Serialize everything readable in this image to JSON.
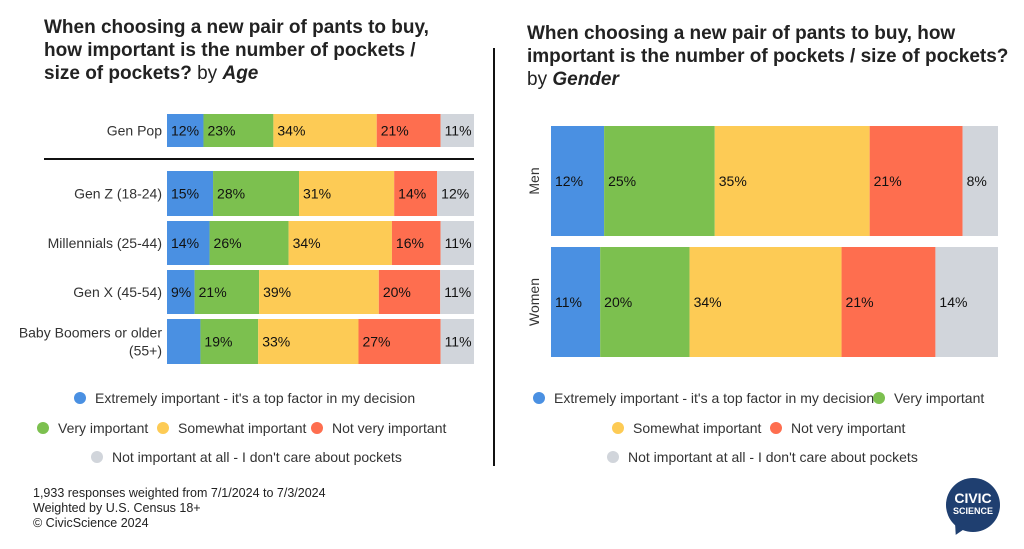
{
  "colors": {
    "extremely": "#4a90e2",
    "very": "#7cc04f",
    "somewhat": "#fdcb55",
    "not_very": "#fe6e4f",
    "not_at_all": "#d1d5db"
  },
  "left": {
    "title_lines": [
      "When choosing a new pair of pants to buy,",
      "how important is the number of pockets /",
      "size of pockets?"
    ],
    "by_text": "by",
    "by_dim": "Age",
    "legend": [
      "Extremely important - it's a top factor in my decision",
      "Very important",
      "Somewhat important",
      "Not very important",
      "Not important at all - I don't care about pockets"
    ]
  },
  "right": {
    "title_lines": [
      "When choosing a new pair of pants to buy, how",
      "important is the number of pockets / size of pockets?"
    ],
    "by_text": "by",
    "by_dim": "Gender",
    "legend": [
      "Extremely important - it's a top factor in my decision",
      "Very important",
      "Somewhat important",
      "Not very important",
      "Not important at all - I don't care about pockets"
    ]
  },
  "footnote": [
    "1,933 responses weighted from 7/1/2024 to 7/3/2024",
    "Weighted by U.S. Census 18+",
    "© CivicScience 2024"
  ],
  "logo": {
    "line1": "CIVIC",
    "line2": "SCIENCE"
  },
  "chart_data": [
    {
      "type": "bar",
      "orientation": "horizontal",
      "stacked": true,
      "normalized_percent": true,
      "categories": [
        "Gen Pop",
        "Gen Z (18-24)",
        "Millennials (25-44)",
        "Gen X (45-54)",
        "Baby Boomers or older (55+)"
      ],
      "series": [
        {
          "name": "Extremely important - it's a top factor in my decision",
          "values": [
            12,
            15,
            14,
            9,
            11
          ],
          "labels": [
            "12%",
            "15%",
            "14%",
            "9%",
            ""
          ]
        },
        {
          "name": "Very important",
          "values": [
            23,
            28,
            26,
            21,
            19
          ],
          "labels": [
            "23%",
            "28%",
            "26%",
            "21%",
            "19%"
          ]
        },
        {
          "name": "Somewhat important",
          "values": [
            34,
            31,
            34,
            39,
            33
          ],
          "labels": [
            "34%",
            "31%",
            "34%",
            "39%",
            "33%"
          ]
        },
        {
          "name": "Not very important",
          "values": [
            21,
            14,
            16,
            20,
            27
          ],
          "labels": [
            "21%",
            "14%",
            "16%",
            "20%",
            "27%"
          ]
        },
        {
          "name": "Not important at all - I don't care about pockets",
          "values": [
            11,
            12,
            11,
            11,
            11
          ],
          "labels": [
            "11%",
            "12%",
            "11%",
            "11%",
            "11%"
          ]
        }
      ],
      "legend_position": "bottom",
      "grid": false
    },
    {
      "type": "bar",
      "orientation": "horizontal",
      "stacked": true,
      "normalized_percent": true,
      "categories": [
        "Men",
        "Women"
      ],
      "series": [
        {
          "name": "Extremely important - it's a top factor in my decision",
          "values": [
            12,
            11
          ],
          "labels": [
            "12%",
            "11%"
          ]
        },
        {
          "name": "Very important",
          "values": [
            25,
            20
          ],
          "labels": [
            "25%",
            "20%"
          ]
        },
        {
          "name": "Somewhat important",
          "values": [
            35,
            34
          ],
          "labels": [
            "35%",
            "34%"
          ]
        },
        {
          "name": "Not very important",
          "values": [
            21,
            21
          ],
          "labels": [
            "21%",
            "21%"
          ]
        },
        {
          "name": "Not important at all - I don't care about pockets",
          "values": [
            8,
            14
          ],
          "labels": [
            "8%",
            "14%"
          ]
        }
      ],
      "legend_position": "bottom",
      "grid": false
    }
  ]
}
